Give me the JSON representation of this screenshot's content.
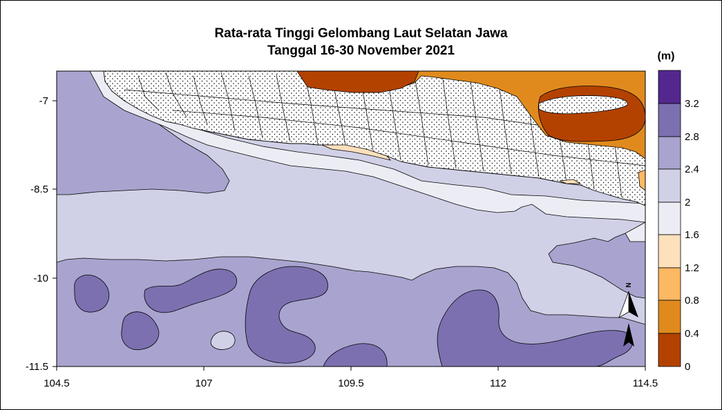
{
  "title": {
    "line1": "Rata-rata Tinggi Gelombang Laut Selatan Jawa",
    "line2": "Tanggal 16-30 November 2021"
  },
  "axes": {
    "x_ticks": [
      "104.5",
      "107",
      "109.5",
      "112",
      "114.5"
    ],
    "y_ticks": [
      "-7",
      "-8.5",
      "-10",
      "-11.5"
    ],
    "xlim": [
      104.5,
      114.5
    ],
    "ylim": [
      -11.5,
      -6.5
    ]
  },
  "legend": {
    "unit": "(m)",
    "levels": [
      "3.2",
      "2.8",
      "2.4",
      "2",
      "1.6",
      "1.2",
      "0.8",
      "0.4",
      "0"
    ],
    "colors": {
      "bin_0_0.4": "#b34200",
      "bin_0.4_0.8": "#e08a1e",
      "bin_0.8_1.2": "#fdb863",
      "bin_1.2_1.6": "#fde0bc",
      "bin_1.6_2": "#ecedf4",
      "bin_2_2.4": "#d0d1e6",
      "bin_2.4_2.8": "#a8a4cf",
      "bin_2.8_3.2": "#7d70b0",
      "bin_3.2_plus": "#54278f"
    }
  },
  "north_arrow": {
    "label": "N"
  }
}
